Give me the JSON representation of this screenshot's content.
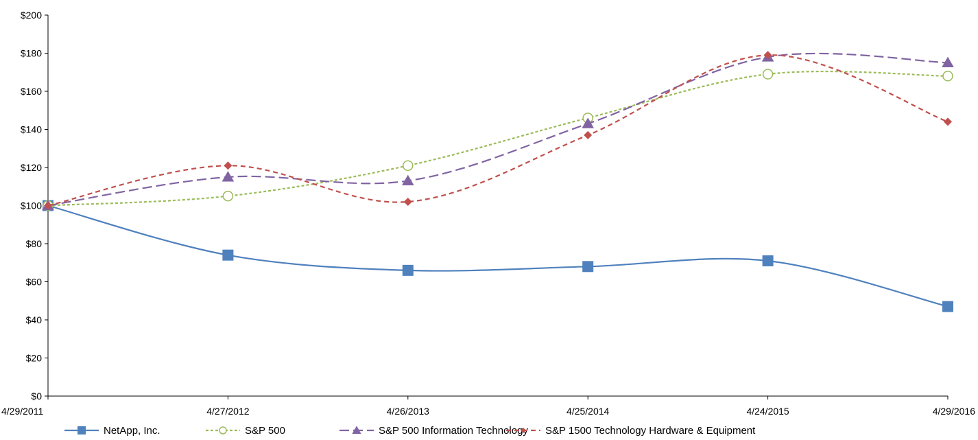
{
  "chart_data": {
    "type": "line",
    "title": "",
    "xlabel": "",
    "ylabel": "",
    "categories": [
      "4/29/2011",
      "4/27/2012",
      "4/26/2013",
      "4/25/2014",
      "4/24/2015",
      "4/29/2016"
    ],
    "ylim": [
      0,
      200
    ],
    "yticks": [
      "$0",
      "$20",
      "$40",
      "$60",
      "$80",
      "$100",
      "$120",
      "$140",
      "$160",
      "$180",
      "$200"
    ],
    "grid": false,
    "legend_position": "bottom",
    "series": [
      {
        "name": "NetApp, Inc.",
        "values": [
          100,
          74,
          66,
          68,
          71,
          47
        ],
        "color": "#4f81bd",
        "marker": "square",
        "dash": "solid"
      },
      {
        "name": "S&P 500",
        "values": [
          100,
          105,
          121,
          146,
          169,
          168
        ],
        "color": "#9bbb59",
        "marker": "circle-open",
        "dash": "dotted"
      },
      {
        "name": "S&P 500 Information Technology",
        "values": [
          100,
          115,
          113,
          143,
          178,
          175
        ],
        "color": "#8064a2",
        "marker": "triangle",
        "dash": "dashed"
      },
      {
        "name": "S&P 1500 Technology Hardware  & Equipment",
        "values": [
          100,
          121,
          102,
          137,
          179,
          144
        ],
        "color": "#c0504d",
        "marker": "diamond",
        "dash": "dashed"
      }
    ]
  }
}
